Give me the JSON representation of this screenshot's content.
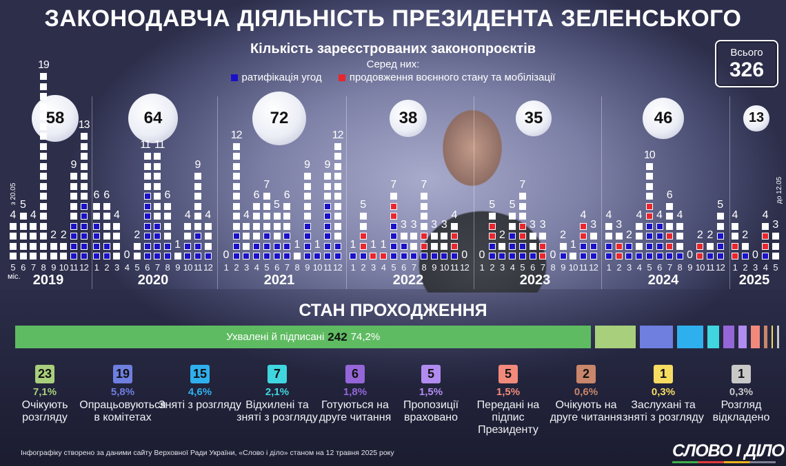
{
  "title": "ЗАКОНОДАВЧА ДІЯЛЬНІСТЬ ПРЕЗИДЕНТА ЗЕЛЕНСЬКОГО",
  "total": {
    "label": "Всього",
    "value": "326"
  },
  "colors": {
    "ratification": "#1a10c8",
    "martial_law": "#e8262e",
    "other": "#ffffff"
  },
  "chart_data": {
    "type": "bar",
    "title": "Кількість зареєстрованих законопроєктів",
    "subtitle": "Серед них:",
    "legend": [
      {
        "key": "b",
        "label": "ратифікація угод"
      },
      {
        "key": "r",
        "label": "продовження воєнного стану та мобілізації"
      }
    ],
    "month_unit": "міс.",
    "start_note": "з 20.05",
    "end_note": "до 12.05",
    "years": [
      {
        "year": "2019",
        "total": 58,
        "months": [
          {
            "m": 5,
            "v": 4,
            "s": "wwww"
          },
          {
            "m": 6,
            "v": 5,
            "s": "wwwww"
          },
          {
            "m": 7,
            "v": 4,
            "s": "wwww"
          },
          {
            "m": 8,
            "v": 19,
            "s": "wwwwwwwwwwwwwwwwwww"
          },
          {
            "m": 9,
            "v": 2,
            "s": "ww"
          },
          {
            "m": 10,
            "v": 2,
            "s": "ww"
          },
          {
            "m": 11,
            "v": 9,
            "s": "bbbbwwwww"
          },
          {
            "m": 12,
            "v": 13,
            "s": "bbbbbbwwwwwww"
          }
        ]
      },
      {
        "year": "2020",
        "total": 64,
        "months": [
          {
            "m": 1,
            "v": 6,
            "s": "bbbbww"
          },
          {
            "m": 2,
            "v": 6,
            "s": "bbwwww"
          },
          {
            "m": 3,
            "v": 4,
            "s": "wwww"
          },
          {
            "m": 4,
            "v": 0,
            "s": ""
          },
          {
            "m": 5,
            "v": 2,
            "s": "ww"
          },
          {
            "m": 6,
            "v": 11,
            "s": "bbbbbbbwwww"
          },
          {
            "m": 7,
            "v": 11,
            "s": "bbbbwwwwwww"
          },
          {
            "m": 8,
            "v": 6,
            "s": "bbwwww"
          },
          {
            "m": 9,
            "v": 1,
            "s": "w"
          },
          {
            "m": 10,
            "v": 4,
            "s": "bbww"
          },
          {
            "m": 11,
            "v": 9,
            "s": "bbbwwwwww"
          },
          {
            "m": 12,
            "v": 4,
            "s": "bwww"
          }
        ]
      },
      {
        "year": "2021",
        "total": 72,
        "months": [
          {
            "m": 1,
            "v": 0,
            "s": ""
          },
          {
            "m": 2,
            "v": 12,
            "s": "bbbwwwwwwwww"
          },
          {
            "m": 3,
            "v": 4,
            "s": "bwww"
          },
          {
            "m": 4,
            "v": 6,
            "s": "bbwwww"
          },
          {
            "m": 5,
            "v": 7,
            "s": "bbbwwww"
          },
          {
            "m": 6,
            "v": 5,
            "s": "bbwww"
          },
          {
            "m": 7,
            "v": 6,
            "s": "bbbwww"
          },
          {
            "m": 8,
            "v": 1,
            "s": "w"
          },
          {
            "m": 9,
            "v": 9,
            "s": "bbbbwwwww"
          },
          {
            "m": 10,
            "v": 1,
            "s": "b"
          },
          {
            "m": 11,
            "v": 9,
            "s": "bbbbbbwww"
          },
          {
            "m": 12,
            "v": 12,
            "s": "bbwwwwwwwwww"
          }
        ]
      },
      {
        "year": "2022",
        "total": 38,
        "months": [
          {
            "m": 1,
            "v": 1,
            "s": "b"
          },
          {
            "m": 2,
            "v": 5,
            "s": "brrww"
          },
          {
            "m": 3,
            "v": 1,
            "s": "r"
          },
          {
            "m": 4,
            "v": 1,
            "s": "r"
          },
          {
            "m": 5,
            "v": 7,
            "s": "bbbbrrw"
          },
          {
            "m": 6,
            "v": 3,
            "s": "bbw"
          },
          {
            "m": 7,
            "v": 3,
            "s": "bww"
          },
          {
            "m": 8,
            "v": 7,
            "s": "brrwwww"
          },
          {
            "m": 9,
            "v": 3,
            "s": "bww"
          },
          {
            "m": 10,
            "v": 3,
            "s": "bww"
          },
          {
            "m": 11,
            "v": 4,
            "s": "brrw"
          },
          {
            "m": 12,
            "v": 0,
            "s": ""
          }
        ]
      },
      {
        "year": "2023",
        "total": 35,
        "months": [
          {
            "m": 1,
            "v": 0,
            "s": ""
          },
          {
            "m": 2,
            "v": 5,
            "s": "bbrrw"
          },
          {
            "m": 3,
            "v": 2,
            "s": "bw"
          },
          {
            "m": 4,
            "v": 5,
            "s": "bbbww"
          },
          {
            "m": 5,
            "v": 7,
            "s": "bbrrwww"
          },
          {
            "m": 6,
            "v": 3,
            "s": "bww"
          },
          {
            "m": 7,
            "v": 3,
            "s": "rrw"
          },
          {
            "m": 8,
            "v": 0,
            "s": ""
          },
          {
            "m": 9,
            "v": 2,
            "s": "bw"
          },
          {
            "m": 10,
            "v": 1,
            "s": "w"
          },
          {
            "m": 11,
            "v": 4,
            "s": "bbrr"
          },
          {
            "m": 12,
            "v": 3,
            "s": "bbw"
          }
        ]
      },
      {
        "year": "2024",
        "total": 46,
        "months": [
          {
            "m": 1,
            "v": 4,
            "s": "bbww"
          },
          {
            "m": 2,
            "v": 3,
            "s": "rrw"
          },
          {
            "m": 3,
            "v": 2,
            "s": "bb"
          },
          {
            "m": 4,
            "v": 4,
            "s": "bwww"
          },
          {
            "m": 5,
            "v": 10,
            "s": "bbbbrrwwww"
          },
          {
            "m": 6,
            "v": 4,
            "s": "bbbb"
          },
          {
            "m": 7,
            "v": 6,
            "s": "brrwww"
          },
          {
            "m": 8,
            "v": 4,
            "s": "bwww"
          },
          {
            "m": 9,
            "v": 0,
            "s": ""
          },
          {
            "m": 10,
            "v": 2,
            "s": "rr"
          },
          {
            "m": 11,
            "v": 2,
            "s": "bw"
          },
          {
            "m": 12,
            "v": 5,
            "s": "bbbww"
          }
        ]
      },
      {
        "year": "2025",
        "total": 13,
        "months": [
          {
            "m": 1,
            "v": 4,
            "s": "rrww"
          },
          {
            "m": 2,
            "v": 2,
            "s": "bw"
          },
          {
            "m": 3,
            "v": 0,
            "s": ""
          },
          {
            "m": 4,
            "v": 4,
            "s": "brrw"
          },
          {
            "m": 5,
            "v": 3,
            "s": "www"
          }
        ]
      }
    ]
  },
  "status": {
    "title": "СТАН ПРОХОДЖЕННЯ",
    "approved": {
      "label": "Ухвалені й підписані",
      "count": "242",
      "pct": "74,2%",
      "color": "#5fbb62"
    },
    "items": [
      {
        "count": "23",
        "pct": "7,1%",
        "label": "Очікують розгляду",
        "color": "#a8cf7c"
      },
      {
        "count": "19",
        "pct": "5,8%",
        "label": "Опрацьовуються в комітетах",
        "color": "#6f7fe0"
      },
      {
        "count": "15",
        "pct": "4,6%",
        "label": "Зняті з розгляду",
        "color": "#2fb0ee"
      },
      {
        "count": "7",
        "pct": "2,1%",
        "label": "Відхилені та зняті з розгляду",
        "color": "#3fd6e0"
      },
      {
        "count": "6",
        "pct": "1,8%",
        "label": "Готуються на друге читання",
        "color": "#9466d8"
      },
      {
        "count": "5",
        "pct": "1,5%",
        "label": "Пропозиції враховано",
        "color": "#b18cf0"
      },
      {
        "count": "5",
        "pct": "1,5%",
        "label": "Передані на підпис Президенту",
        "color": "#f28a7c"
      },
      {
        "count": "2",
        "pct": "0,6%",
        "label": "Очікують на друге читання",
        "color": "#c9866a"
      },
      {
        "count": "1",
        "pct": "0,3%",
        "label": "Заслухані та зняті з розгляду",
        "color": "#f7dc62"
      },
      {
        "count": "1",
        "pct": "0,3%",
        "label": "Розгляд відкладено",
        "color": "#c8c8c8"
      }
    ]
  },
  "footer": "Інфографіку створено за даними сайту Верховної Ради України, «Слово і діло» станом на 12 травня 2025 року",
  "logo": "СЛОВО І ДІЛО"
}
